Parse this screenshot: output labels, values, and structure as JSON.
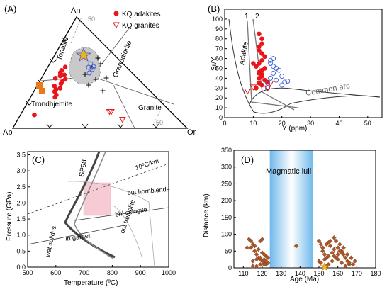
{
  "chart_data": [
    {
      "panel": "A",
      "type": "scatter",
      "diagram": "An-Ab-Or normative ternary",
      "apices": {
        "top": "An",
        "left": "Ab",
        "right": "Or"
      },
      "fields": [
        "Tonalite",
        "Granodiorite",
        "Trondhjemite",
        "Granite"
      ],
      "contour_labels": [
        "50",
        "50"
      ],
      "legend": [
        {
          "name": "KQ adakites",
          "symbol": "filled-circle",
          "color": "#e8151b"
        },
        {
          "name": "KQ granites",
          "symbol": "open-triangle",
          "color": "#e8151b"
        }
      ],
      "series": [
        {
          "name": "KQ adakites",
          "an": [
            55,
            48,
            42,
            40,
            38,
            35,
            33,
            30,
            28,
            36,
            44,
            52,
            50,
            47,
            45,
            12
          ],
          "ab": [
            35,
            40,
            45,
            47,
            52,
            53,
            55,
            56,
            58,
            50,
            42,
            39,
            41,
            43,
            47,
            80
          ]
        },
        {
          "name": "KQ granites",
          "an": [
            15,
            15,
            8
          ],
          "ab": [
            35,
            34,
            32
          ]
        }
      ]
    },
    {
      "panel": "B",
      "type": "scatter",
      "xlabel": "Y (ppm)",
      "ylabel": "Sr/Y",
      "xlim": [
        0,
        55
      ],
      "ylim": [
        0,
        110
      ],
      "xticks": [
        0,
        10,
        20,
        30,
        40,
        50
      ],
      "yticks": [
        0,
        10,
        20,
        30,
        40,
        50,
        60,
        70,
        80,
        90,
        100
      ],
      "fields": [
        "Adakite",
        "Common arc"
      ],
      "trend_labels": [
        "1",
        "2"
      ],
      "series": [
        {
          "name": "KQ adakites",
          "x": [
            12,
            13,
            13,
            12,
            12,
            13,
            14,
            13,
            12,
            11,
            14,
            13,
            12,
            10,
            13,
            12,
            14,
            15,
            12,
            13,
            11,
            12,
            13
          ],
          "y": [
            85,
            80,
            75,
            72,
            68,
            65,
            62,
            58,
            55,
            52,
            50,
            48,
            45,
            55,
            42,
            40,
            38,
            36,
            35,
            33,
            30,
            46,
            44
          ]
        },
        {
          "name": "open circles",
          "x": [
            15,
            16,
            17,
            18,
            16,
            17,
            19,
            20,
            15,
            18,
            21,
            17,
            16,
            20,
            22
          ],
          "y": [
            35,
            40,
            45,
            50,
            55,
            60,
            48,
            42,
            30,
            38,
            36,
            52,
            58,
            33,
            37
          ]
        },
        {
          "name": "KQ granites",
          "x": [
            10,
            8,
            15,
            16
          ],
          "y": [
            31,
            27,
            30,
            35
          ]
        }
      ]
    },
    {
      "panel": "C",
      "type": "line",
      "xlabel": "Temperature (ºC)",
      "ylabel": "Pressure (GPa)",
      "xlim": [
        500,
        1000
      ],
      "ylim": [
        0,
        3.6
      ],
      "xticks": [
        500,
        600,
        700,
        800,
        900,
        1000
      ],
      "yticks": [
        0,
        0.5,
        1.0,
        1.5,
        2.0,
        2.5,
        3.0,
        3.5
      ],
      "curve_labels": [
        "SP98",
        "10ºC/km",
        "out hornblende",
        "bhl eclogite",
        "out tremolite",
        "in garnet",
        "wet solidus"
      ],
      "highlight_box": {
        "t": [
          720,
          800
        ],
        "p": [
          1.5,
          2.5
        ]
      }
    },
    {
      "panel": "D",
      "type": "scatter",
      "xlabel": "Age (Ma)",
      "ylabel": "Distance (km)",
      "xlim": [
        105,
        180
      ],
      "ylim": [
        0,
        350
      ],
      "xticks": [
        110,
        120,
        130,
        140,
        150,
        160,
        170,
        180
      ],
      "yticks": [
        0,
        50,
        100,
        150,
        200,
        250,
        300,
        350
      ],
      "annotation": "Magmatic lull",
      "lull_range": [
        124,
        147
      ],
      "series": [
        {
          "name": "intrusions",
          "x": [
            113,
            114,
            115,
            116,
            117,
            118,
            119,
            120,
            121,
            122,
            114,
            116,
            118,
            120,
            122,
            115,
            117,
            119,
            121,
            123,
            112,
            119,
            120,
            121,
            122,
            115,
            117,
            119,
            121,
            123,
            138,
            150,
            151,
            152,
            152,
            153,
            154,
            155,
            156,
            150,
            151,
            153,
            155,
            157,
            158,
            159,
            160,
            161,
            162,
            163,
            164,
            165,
            166,
            158,
            160,
            162,
            164,
            166,
            168,
            152,
            154,
            156,
            160,
            155,
            157,
            159,
            161,
            163,
            165,
            167,
            169,
            154,
            158,
            162
          ],
          "y": [
            85,
            80,
            70,
            50,
            40,
            30,
            25,
            20,
            15,
            10,
            60,
            65,
            55,
            45,
            35,
            20,
            25,
            30,
            40,
            30,
            60,
            80,
            85,
            25,
            20,
            5,
            5,
            10,
            10,
            15,
            65,
            80,
            70,
            60,
            50,
            40,
            30,
            75,
            80,
            20,
            15,
            25,
            35,
            45,
            90,
            80,
            60,
            70,
            50,
            40,
            30,
            20,
            10,
            35,
            25,
            15,
            5,
            15,
            10,
            60,
            70,
            65,
            40,
            10,
            20,
            30,
            50,
            60,
            40,
            30,
            20,
            5,
            55,
            45
          ]
        },
        {
          "name": "star",
          "x": [
            153
          ],
          "y": [
            3
          ]
        }
      ]
    }
  ],
  "panels": {
    "a": {
      "letter": "(A)"
    },
    "b": {
      "letter": "(B)"
    },
    "c": {
      "letter": "(C)"
    },
    "d": {
      "letter": "(D)"
    }
  },
  "colors": {
    "red": "#e8151b",
    "blue": "#3b5cd6",
    "orange": "#e87a1c",
    "brown": "#a8572c",
    "lull": "#b9dcf3"
  }
}
